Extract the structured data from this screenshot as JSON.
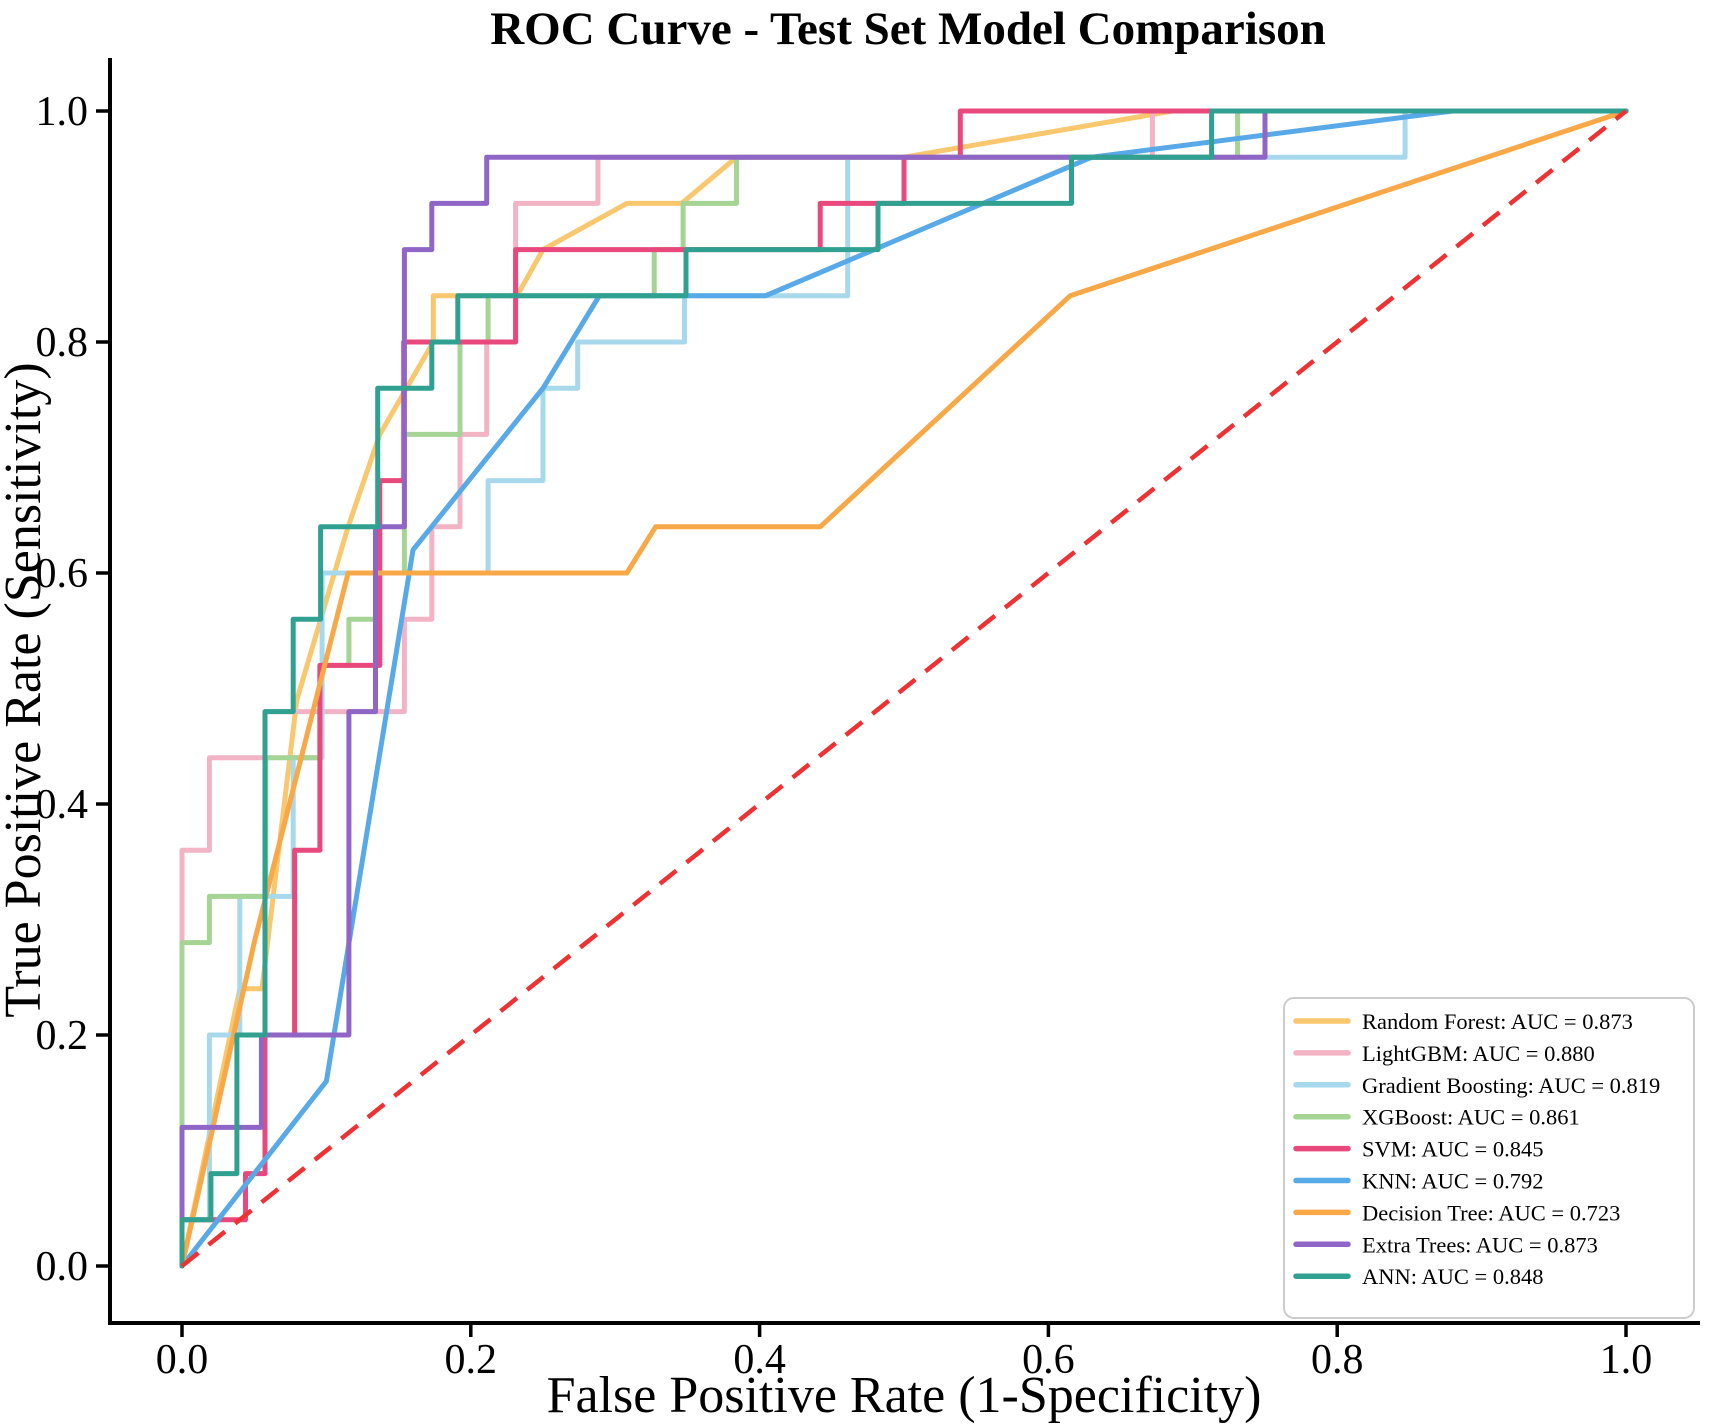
{
  "title": "ROC Curve - Test Set Model Comparison",
  "chart_data": {
    "type": "line",
    "title": "ROC Curve - Test Set Model Comparison",
    "xlabel": "False Positive Rate (1-Specificity)",
    "ylabel": "True Positive Rate (Sensitivity)",
    "xlim": [
      -0.05,
      1.05
    ],
    "ylim": [
      -0.05,
      1.045
    ],
    "grid": false,
    "x_ticks": [
      0.0,
      0.2,
      0.4,
      0.6,
      0.8,
      1.0
    ],
    "y_ticks": [
      0.0,
      0.2,
      0.4,
      0.6,
      0.8,
      1.0
    ],
    "x_tick_labels": [
      "0.0",
      "0.2",
      "0.4",
      "0.6",
      "0.8",
      "1.0"
    ],
    "y_tick_labels": [
      "0.0",
      "0.2",
      "0.4",
      "0.6",
      "0.8",
      "1.0"
    ],
    "legend_position": "lower right",
    "series": [
      {
        "name": "Random Forest",
        "auc": "0.873",
        "color": "#F8C76E",
        "legend_label": "Random Forest: AUC = 0.873",
        "points": [
          [
            0,
            0
          ],
          [
            0.04,
            0.24
          ],
          [
            0.0554,
            0.24
          ],
          [
            0.0795,
            0.49
          ],
          [
            0.115,
            0.64
          ],
          [
            0.137,
            0.72
          ],
          [
            0.174,
            0.8
          ],
          [
            0.174,
            0.84
          ],
          [
            0.232,
            0.84
          ],
          [
            0.25,
            0.88
          ],
          [
            0.308,
            0.92
          ],
          [
            0.346,
            0.92
          ],
          [
            0.384,
            0.96
          ],
          [
            0.5,
            0.96
          ],
          [
            0.686,
            1.0
          ],
          [
            1,
            1
          ]
        ]
      },
      {
        "name": "LightGBM",
        "auc": "0.880",
        "color": "#F2B4C4",
        "legend_label": "LightGBM: AUC = 0.880",
        "points": [
          [
            0,
            0
          ],
          [
            0,
            0.36
          ],
          [
            0.019,
            0.36
          ],
          [
            0.019,
            0.44
          ],
          [
            0.0575,
            0.44
          ],
          [
            0.0575,
            0.48
          ],
          [
            0.154,
            0.48
          ],
          [
            0.154,
            0.56
          ],
          [
            0.173,
            0.56
          ],
          [
            0.173,
            0.64
          ],
          [
            0.1925,
            0.64
          ],
          [
            0.1925,
            0.72
          ],
          [
            0.211,
            0.72
          ],
          [
            0.211,
            0.8
          ],
          [
            0.231,
            0.8
          ],
          [
            0.231,
            0.92
          ],
          [
            0.288,
            0.92
          ],
          [
            0.288,
            0.96
          ],
          [
            0.672,
            0.96
          ],
          [
            0.672,
            1.0
          ],
          [
            1,
            1
          ]
        ]
      },
      {
        "name": "Gradient Boosting",
        "auc": "0.819",
        "color": "#A8D8EC",
        "legend_label": "Gradient Boosting: AUC = 0.819",
        "points": [
          [
            0,
            0
          ],
          [
            0,
            0.04
          ],
          [
            0.019,
            0.04
          ],
          [
            0.019,
            0.2
          ],
          [
            0.04,
            0.2
          ],
          [
            0.04,
            0.32
          ],
          [
            0.077,
            0.32
          ],
          [
            0.077,
            0.44
          ],
          [
            0.097,
            0.44
          ],
          [
            0.097,
            0.6
          ],
          [
            0.212,
            0.6
          ],
          [
            0.212,
            0.68
          ],
          [
            0.25,
            0.68
          ],
          [
            0.25,
            0.76
          ],
          [
            0.274,
            0.76
          ],
          [
            0.274,
            0.8
          ],
          [
            0.348,
            0.8
          ],
          [
            0.348,
            0.84
          ],
          [
            0.461,
            0.84
          ],
          [
            0.461,
            0.96
          ],
          [
            0.847,
            0.96
          ],
          [
            0.847,
            1.0
          ],
          [
            1,
            1
          ]
        ]
      },
      {
        "name": "XGBoost",
        "auc": "0.861",
        "color": "#A5D494",
        "legend_label": "XGBoost: AUC = 0.861",
        "points": [
          [
            0,
            0
          ],
          [
            0,
            0.28
          ],
          [
            0.019,
            0.28
          ],
          [
            0.019,
            0.32
          ],
          [
            0.058,
            0.32
          ],
          [
            0.058,
            0.44
          ],
          [
            0.0955,
            0.44
          ],
          [
            0.0955,
            0.52
          ],
          [
            0.1156,
            0.52
          ],
          [
            0.1156,
            0.56
          ],
          [
            0.135,
            0.56
          ],
          [
            0.135,
            0.6
          ],
          [
            0.154,
            0.6
          ],
          [
            0.154,
            0.72
          ],
          [
            0.1925,
            0.72
          ],
          [
            0.1925,
            0.8
          ],
          [
            0.212,
            0.8
          ],
          [
            0.212,
            0.84
          ],
          [
            0.327,
            0.84
          ],
          [
            0.327,
            0.88
          ],
          [
            0.347,
            0.88
          ],
          [
            0.347,
            0.92
          ],
          [
            0.384,
            0.92
          ],
          [
            0.384,
            0.96
          ],
          [
            0.731,
            0.96
          ],
          [
            0.731,
            1.0
          ],
          [
            1,
            1
          ]
        ]
      },
      {
        "name": "SVM",
        "auc": "0.845",
        "color": "#E8487C",
        "legend_label": "SVM: AUC = 0.845",
        "points": [
          [
            0,
            0
          ],
          [
            0,
            0.04
          ],
          [
            0.044,
            0.04
          ],
          [
            0.044,
            0.08
          ],
          [
            0.0575,
            0.08
          ],
          [
            0.0575,
            0.2
          ],
          [
            0.078,
            0.2
          ],
          [
            0.078,
            0.36
          ],
          [
            0.0955,
            0.36
          ],
          [
            0.0955,
            0.52
          ],
          [
            0.137,
            0.52
          ],
          [
            0.137,
            0.68
          ],
          [
            0.1535,
            0.68
          ],
          [
            0.1535,
            0.8
          ],
          [
            0.231,
            0.8
          ],
          [
            0.231,
            0.88
          ],
          [
            0.442,
            0.88
          ],
          [
            0.442,
            0.92
          ],
          [
            0.5,
            0.92
          ],
          [
            0.5,
            0.96
          ],
          [
            0.539,
            0.96
          ],
          [
            0.539,
            1.0
          ],
          [
            1,
            1
          ]
        ]
      },
      {
        "name": "KNN",
        "auc": "0.792",
        "color": "#57A9E8",
        "legend_label": "KNN: AUC = 0.792",
        "points": [
          [
            0,
            0
          ],
          [
            0.1,
            0.16
          ],
          [
            0.16,
            0.62
          ],
          [
            0.25,
            0.76
          ],
          [
            0.289,
            0.84
          ],
          [
            0.404,
            0.84
          ],
          [
            0.63,
            0.96
          ],
          [
            0.88,
            1.0
          ],
          [
            1,
            1
          ]
        ]
      },
      {
        "name": "Decision Tree",
        "auc": "0.723",
        "color": "#F9A848",
        "legend_label": "Decision Tree: AUC = 0.723",
        "points": [
          [
            0,
            0
          ],
          [
            0.05,
            0.28
          ],
          [
            0.115,
            0.6
          ],
          [
            0.308,
            0.6
          ],
          [
            0.328,
            0.64
          ],
          [
            0.442,
            0.64
          ],
          [
            0.615,
            0.84
          ],
          [
            1,
            1
          ]
        ]
      },
      {
        "name": "Extra Trees",
        "auc": "0.873",
        "color": "#8F66C6",
        "legend_label": "Extra Trees: AUC = 0.873",
        "points": [
          [
            0,
            0
          ],
          [
            0,
            0.12
          ],
          [
            0.055,
            0.12
          ],
          [
            0.055,
            0.2
          ],
          [
            0.1156,
            0.2
          ],
          [
            0.1156,
            0.48
          ],
          [
            0.134,
            0.48
          ],
          [
            0.134,
            0.64
          ],
          [
            0.154,
            0.64
          ],
          [
            0.154,
            0.88
          ],
          [
            0.173,
            0.88
          ],
          [
            0.173,
            0.92
          ],
          [
            0.211,
            0.92
          ],
          [
            0.211,
            0.96
          ],
          [
            0.75,
            0.96
          ],
          [
            0.75,
            1.0
          ],
          [
            1,
            1
          ]
        ]
      },
      {
        "name": "ANN",
        "auc": "0.848",
        "color": "#30A191",
        "legend_label": "ANN: AUC = 0.848",
        "points": [
          [
            0,
            0
          ],
          [
            0,
            0.04
          ],
          [
            0.02,
            0.04
          ],
          [
            0.02,
            0.08
          ],
          [
            0.038,
            0.08
          ],
          [
            0.038,
            0.2
          ],
          [
            0.0575,
            0.2
          ],
          [
            0.0575,
            0.48
          ],
          [
            0.077,
            0.48
          ],
          [
            0.077,
            0.56
          ],
          [
            0.096,
            0.56
          ],
          [
            0.096,
            0.64
          ],
          [
            0.1355,
            0.64
          ],
          [
            0.1355,
            0.76
          ],
          [
            0.173,
            0.76
          ],
          [
            0.173,
            0.8
          ],
          [
            0.191,
            0.8
          ],
          [
            0.191,
            0.84
          ],
          [
            0.349,
            0.84
          ],
          [
            0.349,
            0.88
          ],
          [
            0.482,
            0.88
          ],
          [
            0.482,
            0.92
          ],
          [
            0.616,
            0.92
          ],
          [
            0.616,
            0.96
          ],
          [
            0.713,
            0.96
          ],
          [
            0.713,
            1.0
          ],
          [
            1,
            1
          ]
        ]
      }
    ],
    "reference_line": {
      "name": "chance-diagonal",
      "color": "#EE3233",
      "style": "dashed",
      "points": [
        [
          0,
          0
        ],
        [
          1,
          1
        ]
      ]
    },
    "axis_color": "#000000",
    "legend_border_color": "#CCCCCC",
    "legend_background": "#FFFFFF"
  }
}
